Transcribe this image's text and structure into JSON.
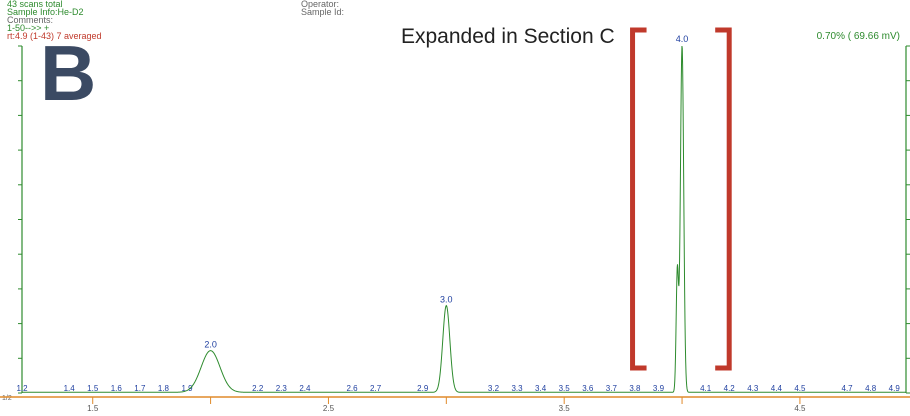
{
  "header": {
    "scans": "43 scans total",
    "sample_info": "Sample Info:He-D2",
    "comments": "Comments:",
    "range": "1-50-->>   +",
    "rt": "rt:4.9 (1-43) 7 averaged",
    "operator": "Operator:",
    "sample_id": "Sample Id:"
  },
  "panel_letter": "B",
  "annotation": "Expanded in Section C",
  "right_readout": "0.70% ( 69.66 mV)",
  "y_corner_label": "1/2",
  "colors": {
    "trace": "#2e8b2e",
    "bracket": "#c0392b",
    "labels": "#1f3fa0",
    "axis": "#e08a2a",
    "frame": "#2e8b2e"
  },
  "chart_data": {
    "type": "line",
    "title": "",
    "xlabel": "",
    "ylabel": "",
    "xlim": [
      1.2,
      4.95
    ],
    "ylim": [
      0,
      100
    ],
    "x_ticks": [
      1.5,
      2.0,
      2.5,
      3.0,
      3.5,
      4.0,
      4.5
    ],
    "x_tick_labels": [
      "1.5",
      "2.5",
      "3.5",
      "4.5"
    ],
    "peaks": [
      {
        "x": 2.0,
        "height": 12,
        "width": 0.04,
        "label": "2.0"
      },
      {
        "x": 3.0,
        "height": 25,
        "width": 0.015,
        "label": "3.0"
      },
      {
        "x": 4.0,
        "height": 100,
        "width": 0.007,
        "label": "4.0"
      },
      {
        "x": 3.98,
        "height": 35,
        "width": 0.005,
        "label": ""
      }
    ],
    "baseline_labels": [
      "1.2",
      "1.4",
      "1.5",
      "1.6",
      "1.7",
      "1.8",
      "1.9",
      "2.2",
      "2.3",
      "2.4",
      "2.6",
      "2.7",
      "2.9",
      "3.2",
      "3.3",
      "3.4",
      "3.5",
      "3.6",
      "3.7",
      "3.8",
      "3.9",
      "4.1",
      "4.2",
      "4.3",
      "4.4",
      "4.5",
      "4.7",
      "4.8",
      "4.9"
    ],
    "bracket": {
      "x_start": 3.79,
      "x_end": 4.2
    }
  }
}
